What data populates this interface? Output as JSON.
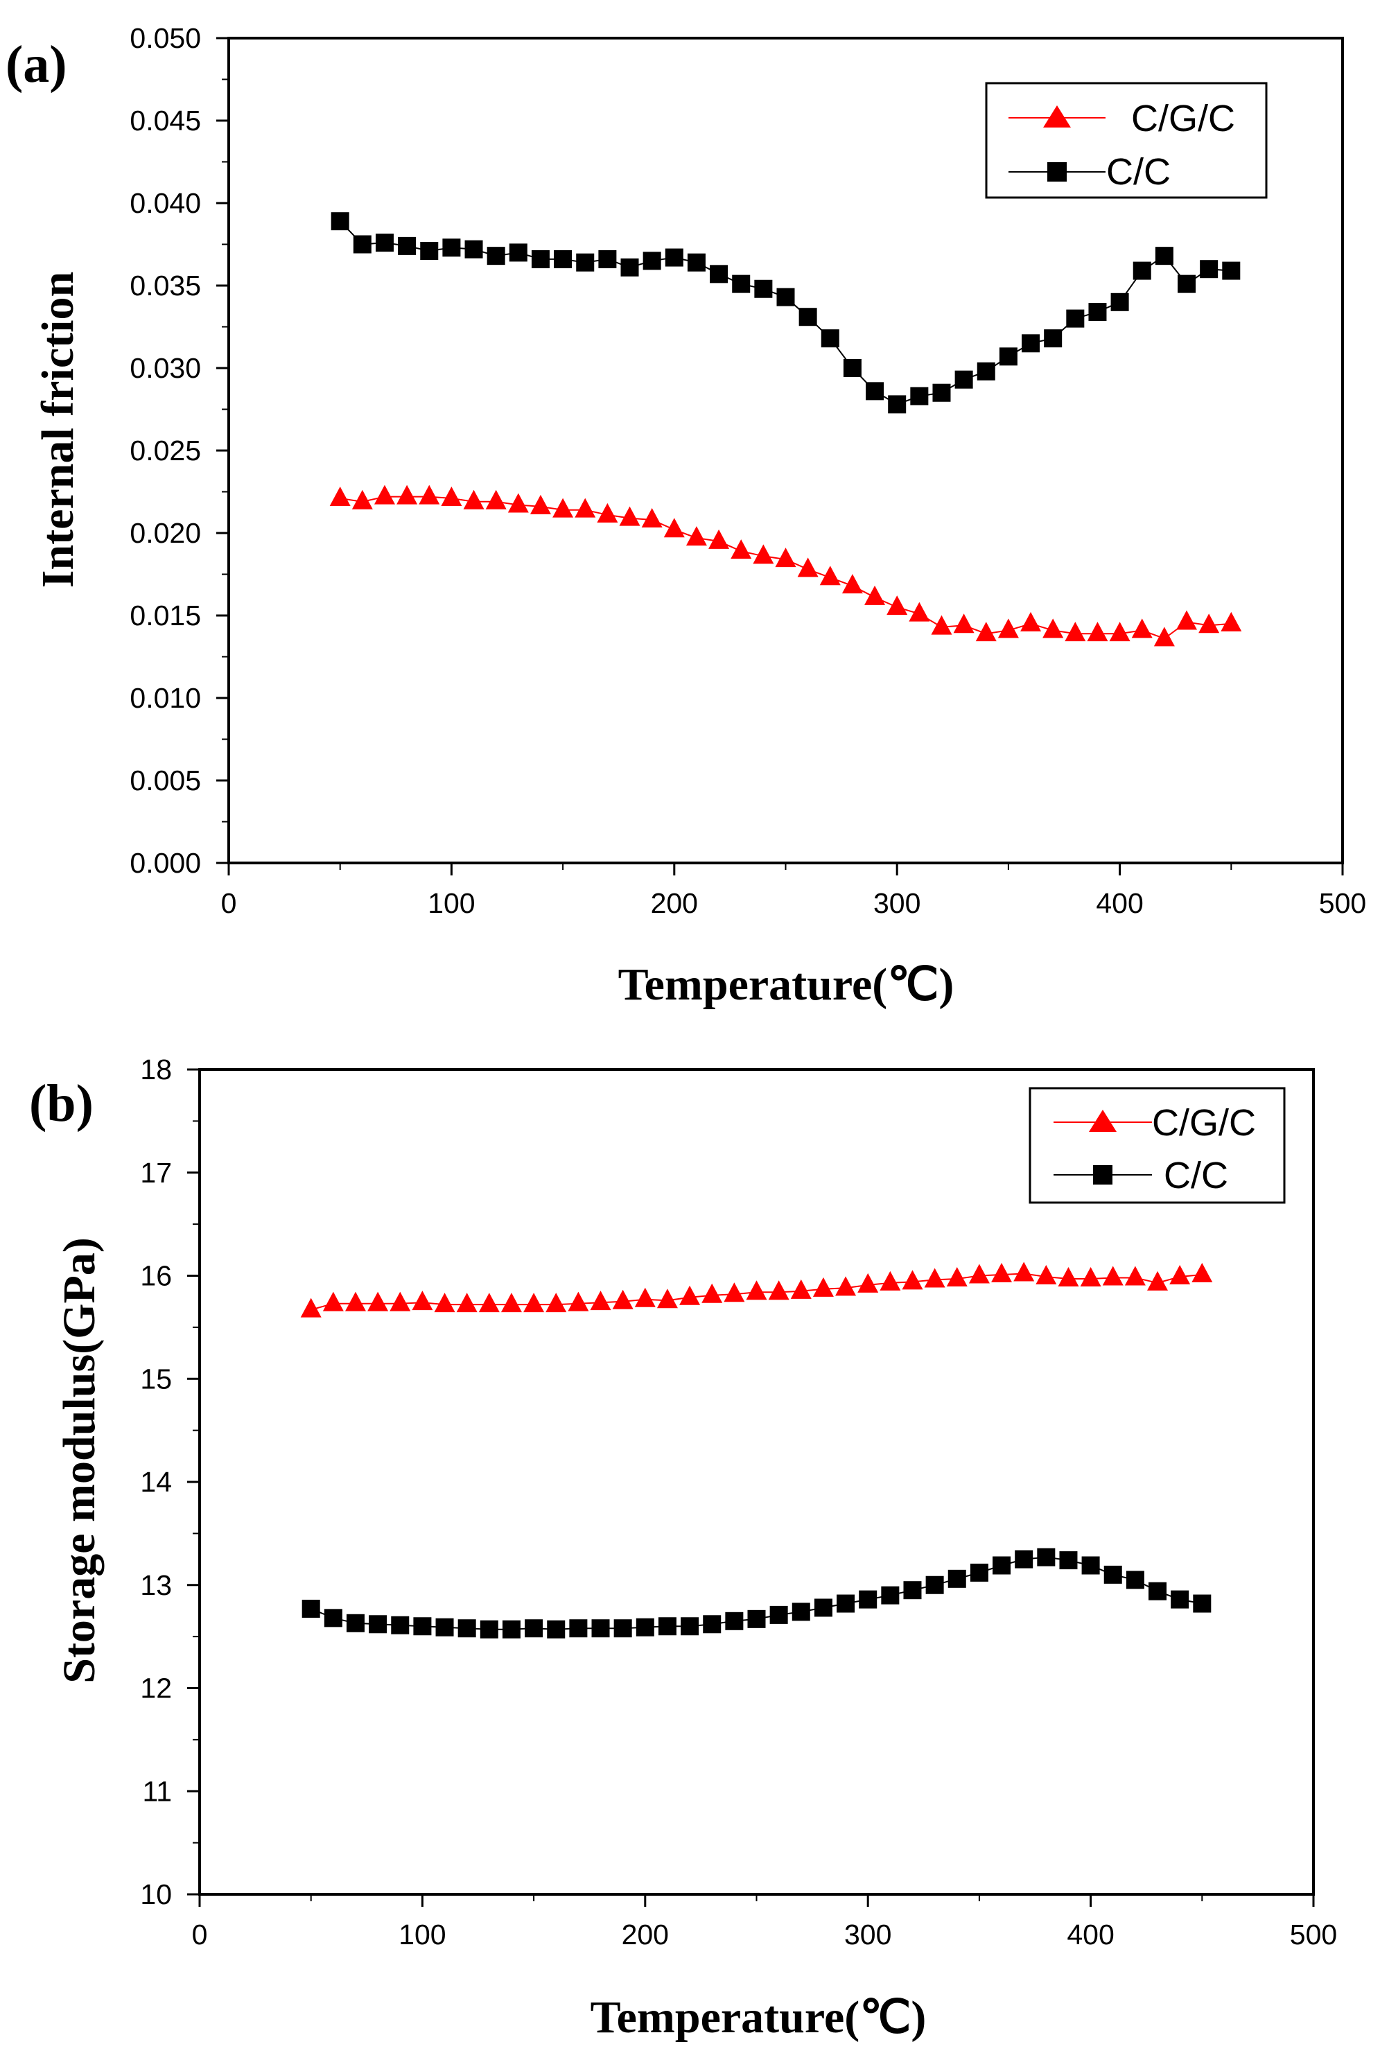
{
  "chart_data": [
    {
      "type": "scatter",
      "panel_label": "(a)",
      "xlabel": "Temperature(℃)",
      "ylabel": "Internal friction",
      "xlim": [
        0,
        500
      ],
      "ylim": [
        0,
        0.05
      ],
      "xticks": [
        0,
        100,
        200,
        300,
        400,
        500
      ],
      "xtick_labels": [
        "0",
        "100",
        "200",
        "300",
        "400",
        "500"
      ],
      "yticks": [
        0,
        0.005,
        0.01,
        0.015,
        0.02,
        0.025,
        0.03,
        0.035,
        0.04,
        0.045,
        0.05
      ],
      "ytick_labels": [
        "0.000",
        "0.005",
        "0.010",
        "0.015",
        "0.020",
        "0.025",
        "0.030",
        "0.035",
        "0.040",
        "0.045",
        "0.050"
      ],
      "legend_position": "top-right",
      "series": [
        {
          "name": "C/G/C",
          "marker": "triangle",
          "color": "#ff0000",
          "x": [
            50,
            60,
            70,
            80,
            90,
            100,
            110,
            120,
            130,
            140,
            150,
            160,
            170,
            180,
            190,
            200,
            210,
            220,
            230,
            240,
            250,
            260,
            270,
            280,
            290,
            300,
            310,
            320,
            330,
            340,
            350,
            360,
            370,
            380,
            390,
            400,
            410,
            420,
            430,
            440,
            450
          ],
          "y": [
            0.0221,
            0.0219,
            0.0222,
            0.0222,
            0.0222,
            0.0221,
            0.0219,
            0.0219,
            0.0217,
            0.0216,
            0.0214,
            0.0214,
            0.0211,
            0.0209,
            0.0208,
            0.0202,
            0.0197,
            0.0195,
            0.0189,
            0.0186,
            0.0184,
            0.0178,
            0.0173,
            0.0168,
            0.0161,
            0.0155,
            0.0151,
            0.0143,
            0.0144,
            0.0139,
            0.0141,
            0.0145,
            0.0141,
            0.0139,
            0.0139,
            0.0139,
            0.0141,
            0.0136,
            0.0146,
            0.0144,
            0.0145
          ]
        },
        {
          "name": "C/C",
          "marker": "square",
          "color": "#000000",
          "x": [
            50,
            60,
            70,
            80,
            90,
            100,
            110,
            120,
            130,
            140,
            150,
            160,
            170,
            180,
            190,
            200,
            210,
            220,
            230,
            240,
            250,
            260,
            270,
            280,
            290,
            300,
            310,
            320,
            330,
            340,
            350,
            360,
            370,
            380,
            390,
            400,
            410,
            420,
            430,
            440,
            450
          ],
          "y": [
            0.0389,
            0.0375,
            0.0376,
            0.0374,
            0.0371,
            0.0373,
            0.0372,
            0.0368,
            0.037,
            0.0366,
            0.0366,
            0.0364,
            0.0366,
            0.0361,
            0.0365,
            0.0367,
            0.0364,
            0.0357,
            0.0351,
            0.0348,
            0.0343,
            0.0331,
            0.0318,
            0.03,
            0.0286,
            0.0278,
            0.0283,
            0.0285,
            0.0293,
            0.0298,
            0.0307,
            0.0315,
            0.0318,
            0.033,
            0.0334,
            0.034,
            0.0359,
            0.0368,
            0.0351,
            0.036,
            0.0359
          ]
        }
      ]
    },
    {
      "type": "scatter",
      "panel_label": "(b)",
      "xlabel": "Temperature(℃)",
      "ylabel": "Storage modulus(GPa)",
      "xlim": [
        0,
        500
      ],
      "ylim": [
        10,
        18
      ],
      "xticks": [
        0,
        100,
        200,
        300,
        400,
        500
      ],
      "xtick_labels": [
        "0",
        "100",
        "200",
        "300",
        "400",
        "500"
      ],
      "yticks": [
        10,
        11,
        12,
        13,
        14,
        15,
        16,
        17,
        18
      ],
      "ytick_labels": [
        "10",
        "11",
        "12",
        "13",
        "14",
        "15",
        "16",
        "17",
        "18"
      ],
      "legend_position": "top-right",
      "series": [
        {
          "name": "C/G/C",
          "marker": "triangle",
          "color": "#ff0000",
          "x": [
            50,
            60,
            70,
            80,
            90,
            100,
            110,
            120,
            130,
            140,
            150,
            160,
            170,
            180,
            190,
            200,
            210,
            220,
            230,
            240,
            250,
            260,
            270,
            280,
            290,
            300,
            310,
            320,
            330,
            340,
            350,
            360,
            370,
            380,
            390,
            400,
            410,
            420,
            430,
            440,
            450
          ],
          "y": [
            15.67,
            15.73,
            15.73,
            15.73,
            15.73,
            15.74,
            15.72,
            15.72,
            15.72,
            15.72,
            15.72,
            15.72,
            15.73,
            15.74,
            15.75,
            15.77,
            15.76,
            15.79,
            15.81,
            15.82,
            15.84,
            15.84,
            15.85,
            15.87,
            15.88,
            15.91,
            15.93,
            15.94,
            15.96,
            15.97,
            16.0,
            16.01,
            16.02,
            15.99,
            15.97,
            15.97,
            15.98,
            15.98,
            15.93,
            15.99,
            16.01
          ]
        },
        {
          "name": "C/C",
          "marker": "square",
          "color": "#000000",
          "x": [
            50,
            60,
            70,
            80,
            90,
            100,
            110,
            120,
            130,
            140,
            150,
            160,
            170,
            180,
            190,
            200,
            210,
            220,
            230,
            240,
            250,
            260,
            270,
            280,
            290,
            300,
            310,
            320,
            330,
            340,
            350,
            360,
            370,
            380,
            390,
            400,
            410,
            420,
            430,
            440,
            450
          ],
          "y": [
            12.77,
            12.68,
            12.63,
            12.62,
            12.61,
            12.6,
            12.59,
            12.58,
            12.57,
            12.57,
            12.58,
            12.57,
            12.58,
            12.58,
            12.58,
            12.59,
            12.6,
            12.6,
            12.62,
            12.65,
            12.67,
            12.71,
            12.74,
            12.78,
            12.82,
            12.86,
            12.9,
            12.95,
            13.0,
            13.06,
            13.12,
            13.19,
            13.25,
            13.27,
            13.24,
            13.19,
            13.1,
            13.05,
            12.94,
            12.86,
            12.82
          ]
        }
      ]
    }
  ]
}
